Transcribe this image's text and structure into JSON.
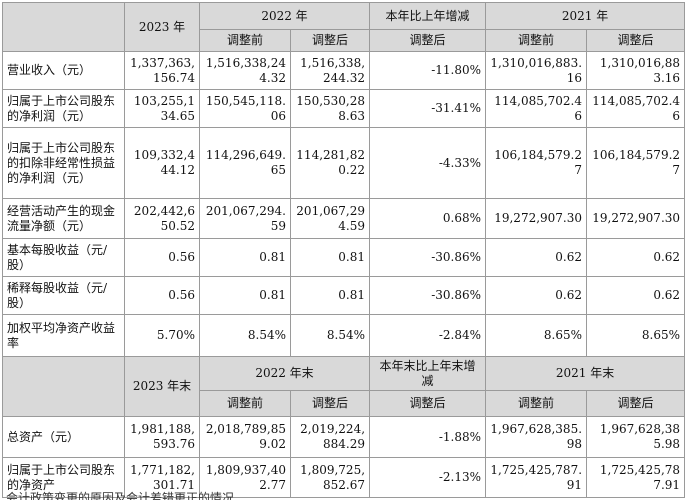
{
  "header1": {
    "y2023": "2023 年",
    "y2022": "2022 年",
    "yoy": "本年比上年增减",
    "y2021": "2021 年",
    "before": "调整前",
    "after": "调整后",
    "yoy_after": "调整后"
  },
  "rows1": [
    {
      "label": "营业收入（元）",
      "v2023": "1,337,363,156.74",
      "v2022b": "1,516,338,244.32",
      "v2022a": "1,516,338,244.32",
      "yoy": "-11.80%",
      "v2021b": "1,310,016,883.16",
      "v2021a": "1,310,016,883.16"
    },
    {
      "label": "归属于上市公司股东的净利润（元）",
      "v2023": "103,255,134.65",
      "v2022b": "150,545,118.06",
      "v2022a": "150,530,288.63",
      "yoy": "-31.41%",
      "v2021b": "114,085,702.46",
      "v2021a": "114,085,702.46"
    },
    {
      "label": "归属于上市公司股东的扣除非经常性损益的净利润（元）",
      "v2023": "109,332,444.12",
      "v2022b": "114,296,649.65",
      "v2022a": "114,281,820.22",
      "yoy": "-4.33%",
      "v2021b": "106,184,579.27",
      "v2021a": "106,184,579.27"
    },
    {
      "label": "经营活动产生的现金流量净额（元）",
      "v2023": "202,442,650.52",
      "v2022b": "201,067,294.59",
      "v2022a": "201,067,294.59",
      "yoy": "0.68%",
      "v2021b": "19,272,907.30",
      "v2021a": "19,272,907.30"
    },
    {
      "label": "基本每股收益（元/股）",
      "v2023": "0.56",
      "v2022b": "0.81",
      "v2022a": "0.81",
      "yoy": "-30.86%",
      "v2021b": "0.62",
      "v2021a": "0.62"
    },
    {
      "label": "稀释每股收益（元/股）",
      "v2023": "0.56",
      "v2022b": "0.81",
      "v2022a": "0.81",
      "yoy": "-30.86%",
      "v2021b": "0.62",
      "v2021a": "0.62"
    },
    {
      "label": "加权平均净资产收益率",
      "v2023": "5.70%",
      "v2022b": "8.54%",
      "v2022a": "8.54%",
      "yoy": "-2.84%",
      "v2021b": "8.65%",
      "v2021a": "8.65%"
    }
  ],
  "header2": {
    "y2023": "2023 年末",
    "y2022": "2022 年末",
    "yoy": "本年末比上年末增减",
    "y2021": "2021 年末",
    "before": "调整前",
    "after": "调整后",
    "yoy_after": "调整后"
  },
  "rows2": [
    {
      "label": "总资产（元）",
      "v2023": "1,981,188,593.76",
      "v2022b": "2,018,789,859.02",
      "v2022a": "2,019,224,884.29",
      "yoy": "-1.88%",
      "v2021b": "1,967,628,385.98",
      "v2021a": "1,967,628,385.98"
    },
    {
      "label": "归属于上市公司股东的净资产",
      "v2023": "1,771,182,301.71",
      "v2022b": "1,809,937,402.77",
      "v2022a": "1,809,725,852.67",
      "yoy": "-2.13%",
      "v2021b": "1,725,425,787.91",
      "v2021a": "1,725,425,787.91"
    }
  ],
  "footer_partial": "会计政策变更的原因及会计差错更正的情况"
}
